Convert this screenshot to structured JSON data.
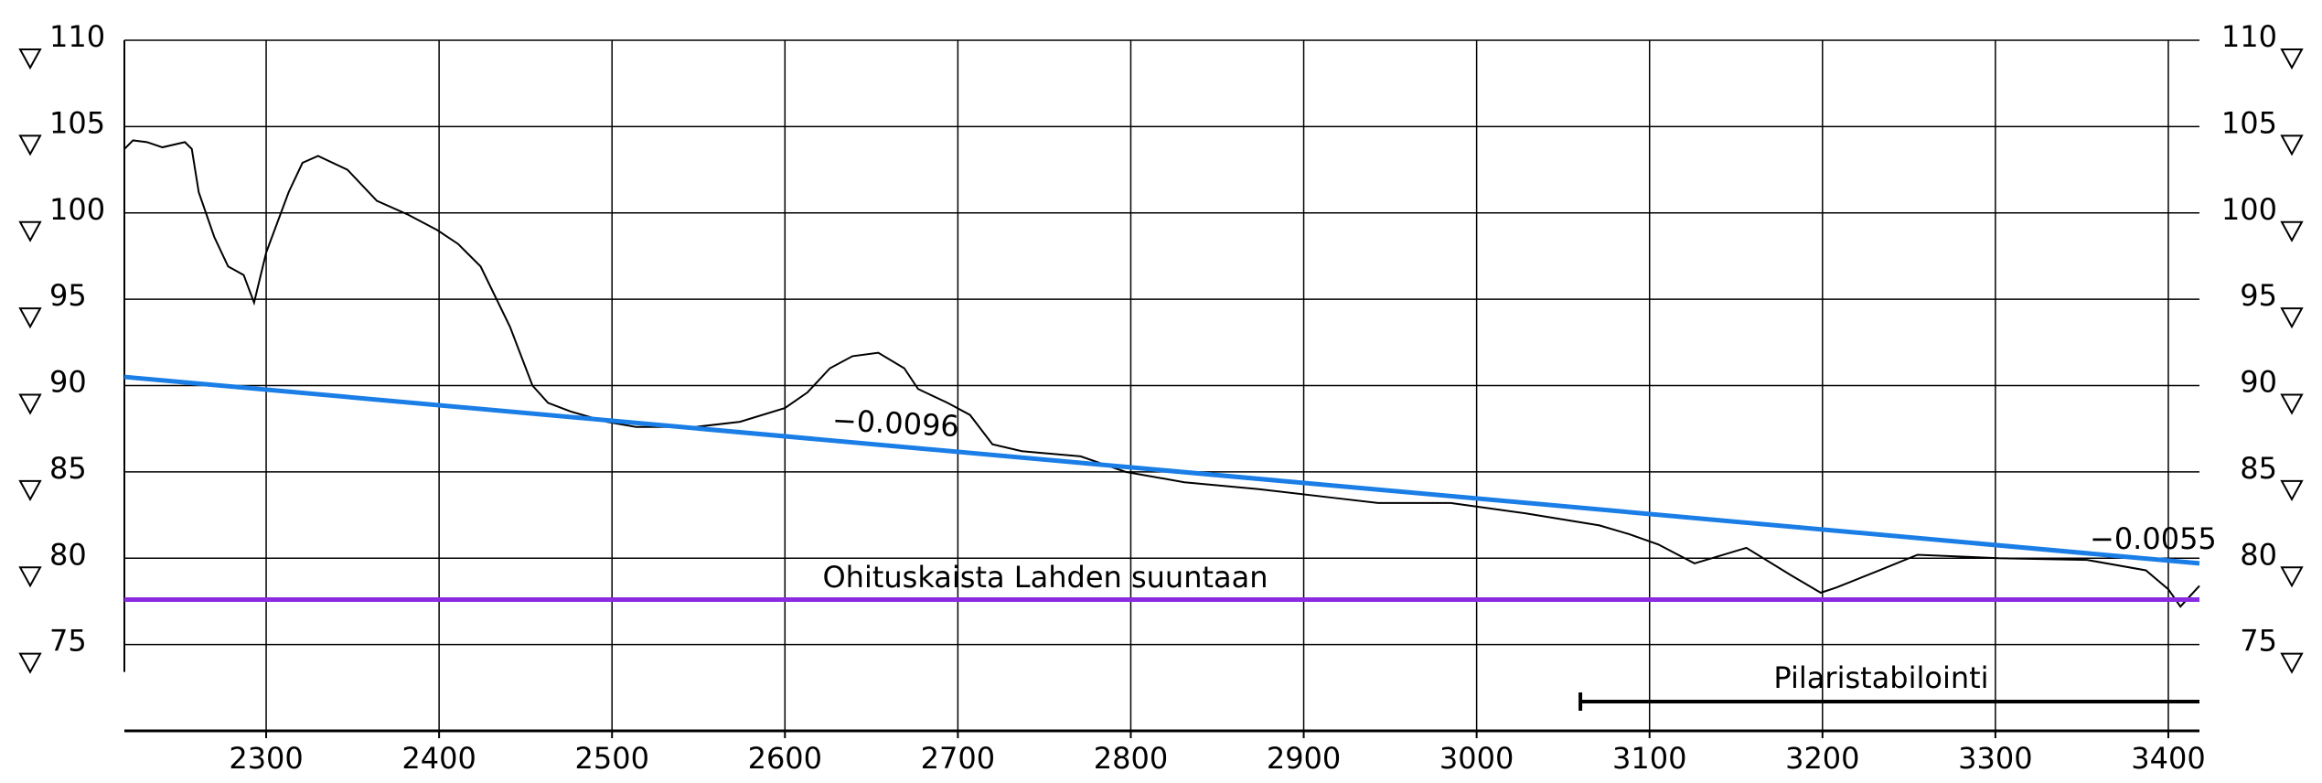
{
  "chart_data": {
    "type": "line",
    "xlim": [
      2218,
      3418
    ],
    "ylim": [
      70,
      110
    ],
    "xticks": [
      2300,
      2400,
      2500,
      2600,
      2700,
      2800,
      2900,
      3000,
      3100,
      3200,
      3300,
      3400
    ],
    "yticks": [
      75,
      80,
      85,
      90,
      95,
      100,
      105,
      110
    ],
    "grid": true,
    "series": [
      {
        "color": "#000000",
        "x": [
          2218,
          2223,
          2231,
          2240,
          2253,
          2257,
          2261,
          2270,
          2278,
          2287,
          2293,
          2300,
          2313,
          2321,
          2330,
          2347,
          2364,
          2382,
          2399,
          2411,
          2424,
          2441,
          2454,
          2463,
          2476,
          2497,
          2514,
          2548,
          2574,
          2600,
          2613,
          2626,
          2639,
          2654,
          2669,
          2677,
          2694,
          2707,
          2720,
          2737,
          2771,
          2797,
          2831,
          2874,
          2917,
          2943,
          2985,
          3028,
          3071,
          3088,
          3105,
          3126,
          3156,
          3182,
          3199,
          3208,
          3233,
          3255,
          3302,
          3353,
          3387,
          3400,
          3407,
          3418
        ],
        "values": [
          103.7,
          104.2,
          104.1,
          103.8,
          104.1,
          103.7,
          101.2,
          98.6,
          96.9,
          96.4,
          94.8,
          97.7,
          101.2,
          102.9,
          103.3,
          102.5,
          100.7,
          99.9,
          99.0,
          98.2,
          96.9,
          93.4,
          90.0,
          89.0,
          88.5,
          87.9,
          87.6,
          87.6,
          87.9,
          88.7,
          89.6,
          91.0,
          91.7,
          91.9,
          91.0,
          89.8,
          89.0,
          88.3,
          86.6,
          86.2,
          85.9,
          85.0,
          84.4,
          84.0,
          83.5,
          83.2,
          83.2,
          82.6,
          81.9,
          81.4,
          80.8,
          79.7,
          80.6,
          79.0,
          78.0,
          78.3,
          79.3,
          80.2,
          80.0,
          79.9,
          79.3,
          78.2,
          77.2,
          78.4
        ]
      },
      {
        "color": "#1a7ee6",
        "x": [
          2218,
          3418
        ],
        "values": [
          90.5,
          79.7
        ]
      },
      {
        "color": "#8a2be2",
        "x": [
          2218,
          3418
        ],
        "values": [
          77.6,
          77.6
        ]
      }
    ],
    "range": {
      "start": 3060,
      "end": 3418,
      "color": "#000000"
    },
    "annotations": [
      "−0.0096",
      "−0.0055",
      "Ohituskaista Lahden suuntaan",
      "Pilaristabilointi"
    ]
  }
}
